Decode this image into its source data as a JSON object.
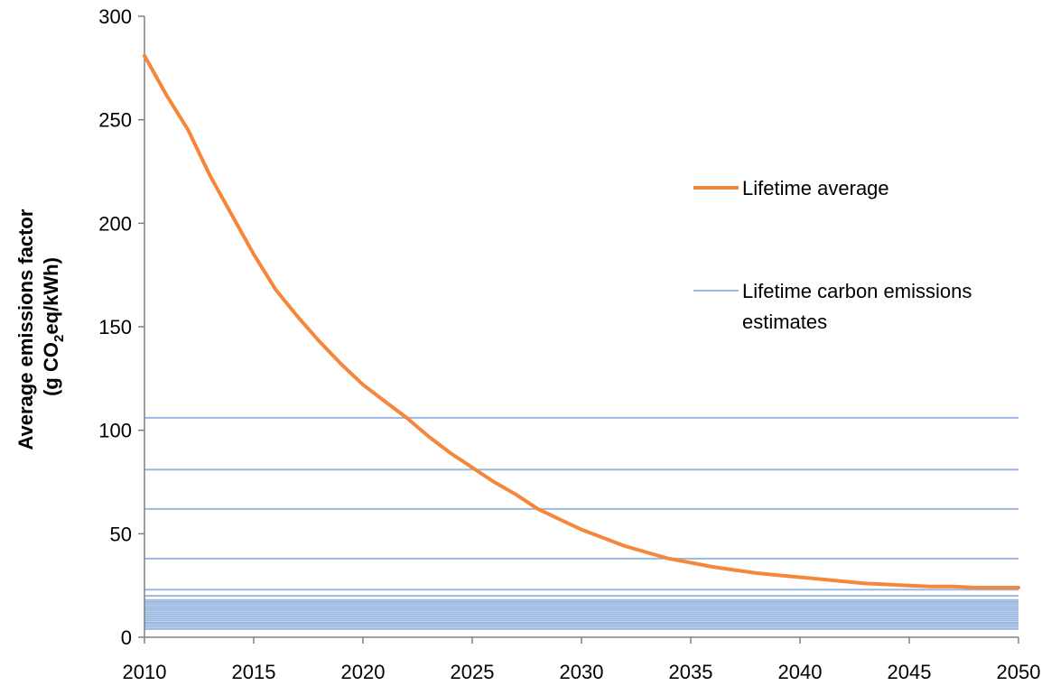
{
  "chart_data": {
    "type": "line",
    "title": "",
    "xlabel": "",
    "ylabel": "Average emissions factor",
    "ylabel_line2_prefix": "(g CO",
    "ylabel_line2_sub": "2",
    "ylabel_line2_suffix": "eq/kWh)",
    "xlim": [
      2010,
      2050
    ],
    "ylim": [
      0,
      300
    ],
    "x_ticks": [
      2010,
      2015,
      2020,
      2025,
      2030,
      2035,
      2040,
      2045,
      2050
    ],
    "y_ticks": [
      0,
      50,
      100,
      150,
      200,
      250,
      300
    ],
    "grid": false,
    "legend_position": "right",
    "series": [
      {
        "name": "Lifetime average",
        "color": "#F5873A",
        "x": [
          2010,
          2011,
          2012,
          2013,
          2014,
          2015,
          2016,
          2017,
          2018,
          2019,
          2020,
          2021,
          2022,
          2023,
          2024,
          2025,
          2026,
          2027,
          2028,
          2029,
          2030,
          2031,
          2032,
          2033,
          2034,
          2035,
          2036,
          2037,
          2038,
          2039,
          2040,
          2041,
          2042,
          2043,
          2044,
          2045,
          2046,
          2047,
          2048,
          2049,
          2050
        ],
        "y": [
          281,
          262,
          245,
          223,
          204,
          185,
          168,
          155,
          143,
          132,
          122,
          114,
          106,
          97,
          89,
          82,
          75,
          69,
          62,
          57,
          52,
          48,
          44,
          41,
          38,
          36,
          34,
          32.5,
          31,
          30,
          29,
          28,
          27,
          26,
          25.5,
          25,
          24.5,
          24.5,
          24,
          24,
          24
        ]
      },
      {
        "name": "Lifetime carbon emissions estimates",
        "color": "#9BB8E0",
        "type": "hlines",
        "values": [
          106,
          81,
          62,
          38,
          23,
          20,
          18,
          17,
          16,
          15,
          14,
          13,
          12,
          11,
          10,
          9,
          8,
          7,
          6,
          5,
          4
        ]
      }
    ],
    "legend": [
      {
        "label": "Lifetime average"
      },
      {
        "label": "Lifetime carbon emissions",
        "label_line2": "estimates"
      }
    ]
  }
}
